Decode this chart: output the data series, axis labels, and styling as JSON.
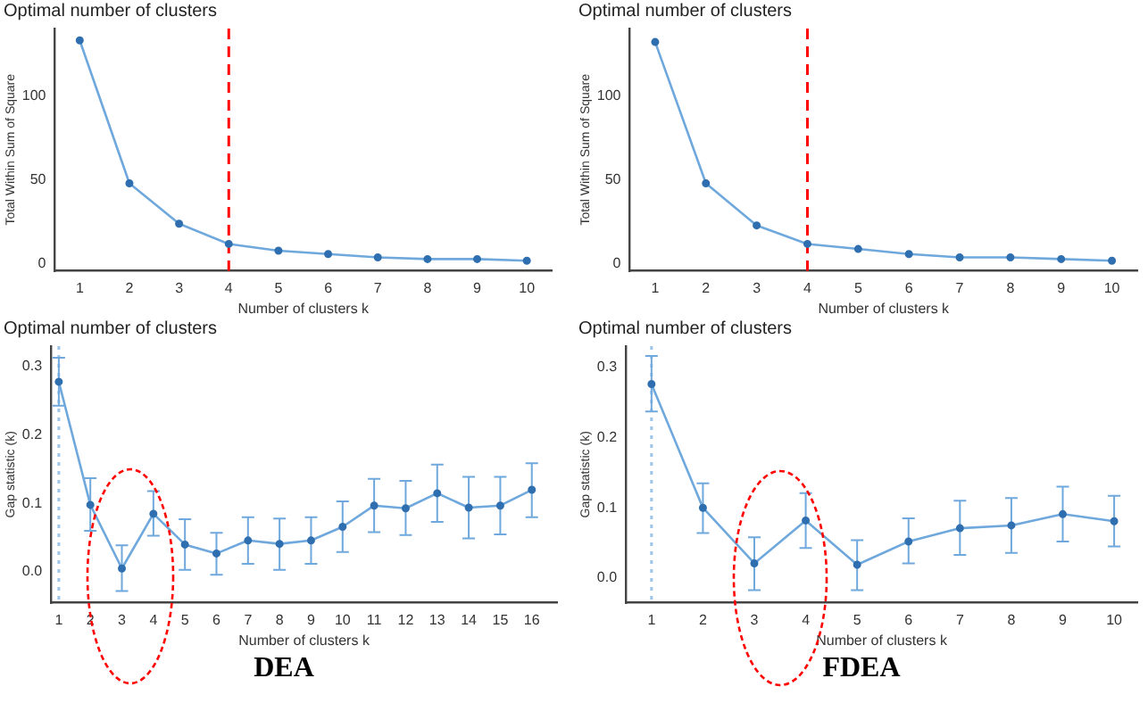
{
  "chart_data": [
    {
      "type": "line",
      "title": "Optimal number of clusters",
      "xlabel": "Number of clusters k",
      "ylabel": "Total Within Sum of Square",
      "x": [
        1,
        2,
        3,
        4,
        5,
        6,
        7,
        8,
        9,
        10
      ],
      "series": [
        {
          "color": "#6fa8dc",
          "values": [
            133,
            48,
            24,
            12,
            8,
            6,
            4,
            3,
            3,
            2
          ]
        }
      ],
      "xlim": [
        0.5,
        10.5
      ],
      "xticks": [
        1,
        2,
        3,
        4,
        5,
        6,
        7,
        8,
        9,
        10
      ],
      "ylim": [
        -4,
        140
      ],
      "yticks": [
        0,
        50,
        100
      ],
      "marker": "circle",
      "grid": false,
      "legend": false,
      "ref_lines": [
        {
          "axis": "x",
          "value": 4,
          "color": "#ff0000",
          "line_style": "dashed"
        }
      ]
    },
    {
      "type": "line",
      "title": "Optimal number of clusters",
      "xlabel": "Number of clusters k",
      "ylabel": "Total Within Sum of Square",
      "x": [
        1,
        2,
        3,
        4,
        5,
        6,
        7,
        8,
        9,
        10
      ],
      "series": [
        {
          "color": "#6fa8dc",
          "values": [
            132,
            48,
            23,
            12,
            9,
            6,
            4,
            4,
            3,
            2
          ]
        }
      ],
      "xlim": [
        0.5,
        10.5
      ],
      "xticks": [
        1,
        2,
        3,
        4,
        5,
        6,
        7,
        8,
        9,
        10
      ],
      "ylim": [
        -4,
        140
      ],
      "yticks": [
        0,
        50,
        100
      ],
      "marker": "circle",
      "grid": false,
      "legend": false,
      "ref_lines": [
        {
          "axis": "x",
          "value": 4,
          "color": "#ff0000",
          "line_style": "dashed"
        }
      ]
    },
    {
      "type": "line",
      "title": "Optimal number of clusters",
      "xlabel": "Number of clusters k",
      "ylabel": "Gap statistic (k)",
      "x": [
        1,
        2,
        3,
        4,
        5,
        6,
        7,
        8,
        9,
        10,
        11,
        12,
        13,
        14,
        15,
        16
      ],
      "series": [
        {
          "color": "#6fa8dc",
          "values": [
            0.278,
            0.098,
            0.005,
            0.085,
            0.04,
            0.027,
            0.046,
            0.041,
            0.046,
            0.066,
            0.097,
            0.093,
            0.115,
            0.094,
            0.097,
            0.12
          ],
          "errors": [
            [
              0.243,
              0.313
            ],
            [
              0.06,
              0.137
            ],
            [
              -0.028,
              0.039
            ],
            [
              0.053,
              0.118
            ],
            [
              0.003,
              0.077
            ],
            [
              -0.004,
              0.057
            ],
            [
              0.012,
              0.08
            ],
            [
              0.003,
              0.078
            ],
            [
              0.012,
              0.08
            ],
            [
              0.029,
              0.103
            ],
            [
              0.058,
              0.136
            ],
            [
              0.054,
              0.133
            ],
            [
              0.073,
              0.157
            ],
            [
              0.049,
              0.139
            ],
            [
              0.055,
              0.139
            ],
            [
              0.08,
              0.159
            ]
          ]
        }
      ],
      "xlim": [
        0.75,
        16.8
      ],
      "xticks": [
        1,
        2,
        3,
        4,
        5,
        6,
        7,
        8,
        9,
        10,
        11,
        12,
        13,
        14,
        15,
        16
      ],
      "ylim": [
        -0.045,
        0.33
      ],
      "yticks": [
        {
          "value": 0,
          "label": "0.0"
        },
        {
          "value": 0.1,
          "label": "0.1"
        },
        {
          "value": 0.2,
          "label": "0.2"
        },
        {
          "value": 0.3,
          "label": "0.3"
        }
      ],
      "marker": "circle",
      "grid": false,
      "legend": false,
      "ref_lines": [
        {
          "axis": "x",
          "value": 1,
          "color": "#9ec5e8",
          "line_style": "dotted"
        }
      ],
      "annotations": [
        "DEA"
      ]
    },
    {
      "type": "line",
      "title": "Optimal number of clusters",
      "xlabel": "Number of clusters k",
      "ylabel": "Gap statistic (k)",
      "x": [
        1,
        2,
        3,
        4,
        5,
        6,
        7,
        8,
        9,
        10
      ],
      "series": [
        {
          "color": "#6fa8dc",
          "values": [
            0.276,
            0.1,
            0.021,
            0.082,
            0.019,
            0.052,
            0.071,
            0.075,
            0.091,
            0.081
          ],
          "errors": [
            [
              0.237,
              0.316
            ],
            [
              0.064,
              0.135
            ],
            [
              -0.017,
              0.058
            ],
            [
              0.043,
              0.121
            ],
            [
              -0.017,
              0.054
            ],
            [
              0.021,
              0.085
            ],
            [
              0.033,
              0.11
            ],
            [
              0.036,
              0.114
            ],
            [
              0.052,
              0.13
            ],
            [
              0.045,
              0.117
            ]
          ]
        }
      ],
      "xlim": [
        0.5,
        10.45
      ],
      "xticks": [
        1,
        2,
        3,
        4,
        5,
        6,
        7,
        8,
        9,
        10
      ],
      "ylim": [
        -0.035,
        0.33
      ],
      "yticks": [
        {
          "value": 0,
          "label": "0.0"
        },
        {
          "value": 0.1,
          "label": "0.1"
        },
        {
          "value": 0.2,
          "label": "0.2"
        },
        {
          "value": 0.3,
          "label": "0.3"
        }
      ],
      "marker": "circle",
      "grid": false,
      "legend": false,
      "ref_lines": [
        {
          "axis": "x",
          "value": 1,
          "color": "#9ec5e8",
          "line_style": "dotted"
        }
      ],
      "annotations": [
        "FDEA"
      ]
    }
  ]
}
